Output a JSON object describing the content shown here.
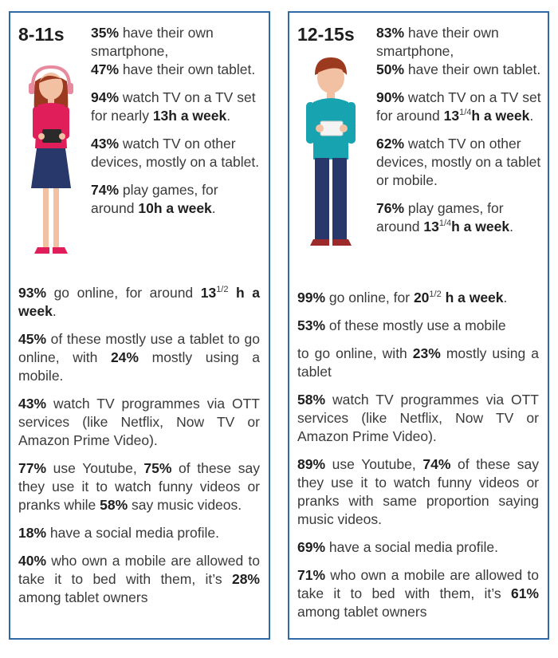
{
  "colors": {
    "border": "#2f6aa6",
    "text": "#3a3a3a",
    "bold": "#1f1f1f"
  },
  "left": {
    "age_label": "8-11s",
    "figure": "girl-holding-tablet-icon",
    "top_stats": [
      {
        "b1": "35%",
        "t1": " have their own smartphone,"
      },
      {
        "b1": "47%",
        "t1": " have their own tablet."
      },
      {
        "b1": "94%",
        "t1": " watch TV on a TV set for nearly ",
        "b2": "13h a week",
        "t2": "."
      },
      {
        "b1": "43%",
        "t1": " watch TV on other devices, mostly on a tablet."
      },
      {
        "b1": "74%",
        "t1": " play games, for around ",
        "b2": "10h a week",
        "t2": "."
      }
    ],
    "bottom_stats": [
      {
        "b1": "93%",
        "t1": " go online, for around ",
        "b2": "13",
        "sup": "1/2",
        "b3": " h a week",
        "t3": "."
      },
      {
        "b1": "45%",
        "t1": " of these mostly use a tablet to go online, with ",
        "b2": "24%",
        "t2": " mostly using a mobile."
      },
      {
        "b1": "43%",
        "t1": " watch TV programmes via OTT services (like Netflix, Now TV or Amazon Prime Video)."
      },
      {
        "b1": "77%",
        "t1": " use Youtube, ",
        "b2": "75%",
        "t2": " of these say they use it to watch funny videos or pranks while ",
        "b3": "58%",
        "t3": " say music videos."
      },
      {
        "b1": "18%",
        "t1": " have a social media profile."
      },
      {
        "b1": "40%",
        "t1": " who own a mobile are allowed to take it to bed with them, it’s ",
        "b2": "28%",
        "t2": " among tablet owners"
      }
    ]
  },
  "right": {
    "age_label": "12-15s",
    "figure": "boy-holding-tablet-icon",
    "top_stats": [
      {
        "b1": "83%",
        "t1": " have their own smartphone,"
      },
      {
        "b1": "50%",
        "t1": " have their own tablet."
      },
      {
        "b1": "90%",
        "t1": " watch TV on a TV set for around ",
        "b2": "13",
        "sup": "1/4",
        "b3": "h a week",
        "t3": "."
      },
      {
        "b1": "62%",
        "t1": " watch TV on other devices,  mostly on a tablet or mobile."
      },
      {
        "b1": "76%",
        "t1": " play games, for around ",
        "b2": "13",
        "sup": "1/4",
        "b3": "h a week",
        "t3": "."
      }
    ],
    "bottom_stats": [
      {
        "b1": "99%",
        "t1": " go online, for ",
        "b2": "20",
        "sup": "1/2",
        "b3": " h a week",
        "t3": "."
      },
      {
        "b1": "53%",
        "t1": " of these mostly use a mobile"
      },
      {
        "t1": "to go online, with ",
        "b2": "23%",
        "t2": " mostly using a tablet"
      },
      {
        "b1": "58%",
        "t1": " watch TV programmes via OTT services (like Netflix, Now TV or Amazon Prime Video)."
      },
      {
        "b1": "89%",
        "t1": " use Youtube, ",
        "b2": "74%",
        "t2": " of these say they use it to watch funny videos or pranks with same proportion saying music videos."
      },
      {
        "b1": "69%",
        "t1": " have a social media profile."
      },
      {
        "b1": "71%",
        "t1": " who own a mobile are allowed to take it to bed with them, it’s ",
        "b2": "61%",
        "t2": " among tablet owners"
      }
    ]
  }
}
